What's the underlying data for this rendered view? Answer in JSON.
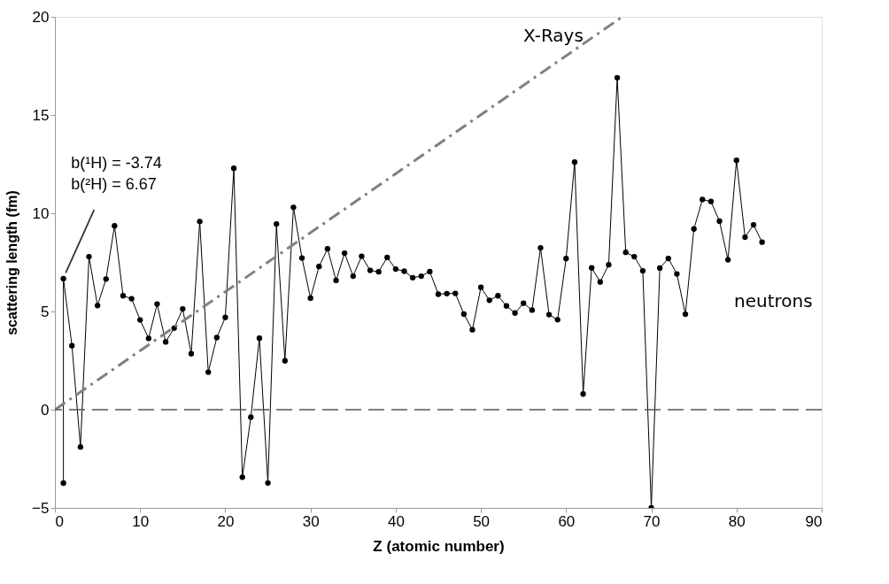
{
  "chart_data": {
    "type": "line",
    "xlabel": "Z (atomic number)",
    "ylabel": "scattering length (fm)",
    "xlim": [
      0,
      90
    ],
    "xticks": [
      0,
      10,
      20,
      30,
      40,
      50,
      60,
      70,
      80,
      90
    ],
    "ylim": [
      -5,
      20
    ],
    "yticks": [
      -5,
      0,
      5,
      10,
      15,
      20
    ],
    "grid": false,
    "legend": false,
    "series": [
      {
        "name": "neutrons",
        "color": "#000000",
        "marker": "circle",
        "line_style": "solid",
        "x": [
          1,
          1,
          2,
          3,
          4,
          5,
          6,
          7,
          8,
          9,
          10,
          11,
          12,
          13,
          14,
          15,
          16,
          17,
          18,
          19,
          20,
          21,
          22,
          23,
          24,
          25,
          26,
          27,
          28,
          29,
          30,
          31,
          32,
          33,
          34,
          35,
          36,
          37,
          38,
          39,
          40,
          41,
          42,
          43,
          44,
          45,
          46,
          47,
          48,
          49,
          50,
          51,
          52,
          53,
          54,
          55,
          56,
          57,
          58,
          59,
          60,
          61,
          62,
          63,
          64,
          65,
          66,
          67,
          68,
          69,
          70,
          71,
          72,
          73,
          74,
          75,
          76,
          77,
          78,
          79,
          80,
          81,
          82,
          83
        ],
        "values": [
          -3.74,
          6.67,
          3.26,
          -1.9,
          7.79,
          5.3,
          6.65,
          9.36,
          5.8,
          5.65,
          4.57,
          3.63,
          5.38,
          3.45,
          4.15,
          5.13,
          2.85,
          9.58,
          1.91,
          3.67,
          4.7,
          12.29,
          -3.44,
          -0.38,
          3.64,
          -3.73,
          9.45,
          2.49,
          10.3,
          7.72,
          5.68,
          7.29,
          8.19,
          6.58,
          7.97,
          6.8,
          7.81,
          7.09,
          7.02,
          7.75,
          7.16,
          7.05,
          6.72,
          6.8,
          7.03,
          5.88,
          5.91,
          5.92,
          4.87,
          4.07,
          6.23,
          5.57,
          5.8,
          5.28,
          4.92,
          5.42,
          5.07,
          8.24,
          4.84,
          4.58,
          7.69,
          12.6,
          0.8,
          7.22,
          6.5,
          7.38,
          16.9,
          8.01,
          7.79,
          7.07,
          -5,
          7.21,
          7.7,
          6.91,
          4.86,
          9.2,
          10.7,
          10.6,
          9.6,
          7.63,
          12.69,
          8.78,
          9.41,
          8.53
        ]
      },
      {
        "name": "X-Rays",
        "color": "#808080",
        "marker": "none",
        "line_style": "dashed",
        "x": [
          0,
          66.6
        ],
        "values": [
          0,
          20
        ]
      }
    ],
    "ref_lines": [
      {
        "axis": "y",
        "value": 0,
        "color": "#555555",
        "line_style": "dashed"
      }
    ],
    "annotations": [
      {
        "text": "b(¹H) = -3.74\nb(²H) = 6.67",
        "x": 1,
        "y": 6.67
      }
    ]
  }
}
